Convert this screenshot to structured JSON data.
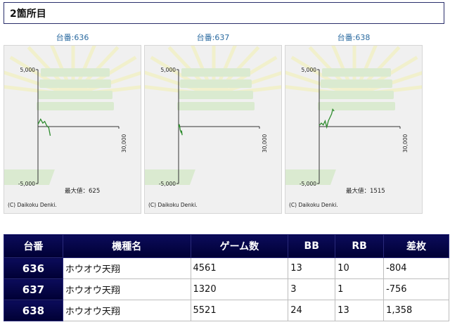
{
  "section": {
    "title": "2箇所目"
  },
  "graphs": [
    {
      "label": "台番:636",
      "y_max_label": "5,000",
      "y_min_label": "-5,000",
      "x_label": "30,000",
      "max_text": "最大値：625",
      "copyright": "(C) Daikoku Denki.",
      "line": [
        [
          0,
          200
        ],
        [
          1000,
          650
        ],
        [
          1800,
          300
        ],
        [
          2500,
          450
        ],
        [
          3200,
          100
        ],
        [
          4000,
          -100
        ],
        [
          4561,
          -804
        ]
      ]
    },
    {
      "label": "台番:637",
      "y_max_label": "5,000",
      "y_min_label": "-5,000",
      "x_label": "30,000",
      "max_text": "",
      "copyright": "(C) Daikoku Denki.",
      "line": [
        [
          0,
          -50
        ],
        [
          300,
          200
        ],
        [
          600,
          -300
        ],
        [
          900,
          -500
        ],
        [
          1100,
          -350
        ],
        [
          1320,
          -756
        ]
      ]
    },
    {
      "label": "台番:638",
      "y_max_label": "5,000",
      "y_min_label": "-5,000",
      "x_label": "30,000",
      "max_text": "最大値：1515",
      "copyright": "(C) Daikoku Denki.",
      "line": [
        [
          0,
          100
        ],
        [
          800,
          300
        ],
        [
          1500,
          150
        ],
        [
          2200,
          500
        ],
        [
          2800,
          -50
        ],
        [
          3400,
          500
        ],
        [
          4000,
          800
        ],
        [
          4600,
          1100
        ],
        [
          5000,
          1515
        ],
        [
          5521,
          1358
        ]
      ]
    }
  ],
  "table": {
    "headers": [
      "台番",
      "機種名",
      "ゲーム数",
      "BB",
      "RB",
      "差枚"
    ],
    "rows": [
      {
        "num": "636",
        "name": "ホウオウ天翔",
        "games": "4561",
        "bb": "13",
        "rb": "10",
        "diff": "-804"
      },
      {
        "num": "637",
        "name": "ホウオウ天翔",
        "games": "1320",
        "bb": "3",
        "rb": "1",
        "diff": "-756"
      },
      {
        "num": "638",
        "name": "ホウオウ天翔",
        "games": "5521",
        "bb": "24",
        "rb": "13",
        "diff": "1,358"
      }
    ]
  },
  "colors": {
    "line": "#2e8b2e",
    "header_bg": "#000040",
    "negative": "#e8000b"
  }
}
